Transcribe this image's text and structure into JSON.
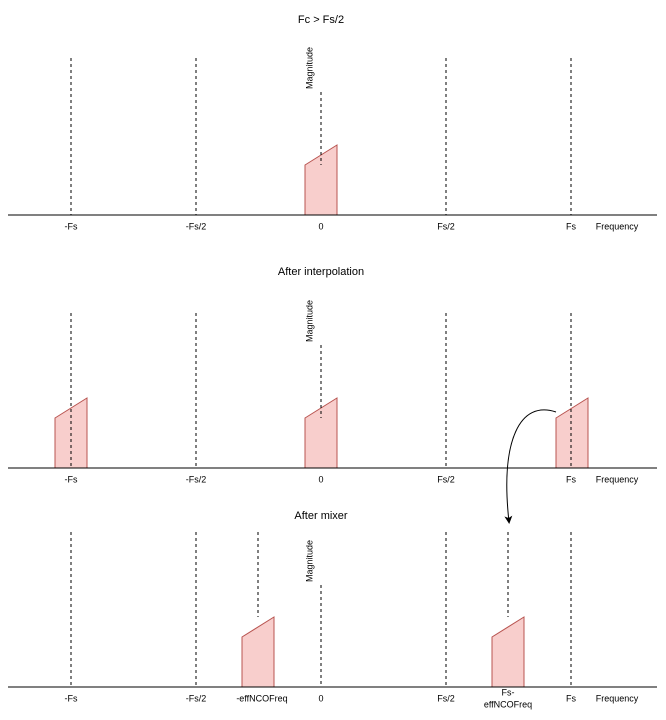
{
  "panels": [
    {
      "title": "Fc > Fs/2",
      "y_axis_label": "Magnitude",
      "x_axis_label": "Frequency",
      "ticks": [
        "-Fs",
        "-Fs/2",
        "0",
        "Fs/2",
        "Fs"
      ]
    },
    {
      "title": "After interpolation",
      "y_axis_label": "Magnitude",
      "x_axis_label": "Frequency",
      "ticks": [
        "-Fs",
        "-Fs/2",
        "0",
        "Fs/2",
        "Fs"
      ]
    },
    {
      "title": "After mixer",
      "y_axis_label": "Magnitude",
      "x_axis_label": "Frequency",
      "ticks": [
        "-Fs",
        "-Fs/2",
        "-effNCOFreq",
        "0",
        "Fs/2",
        [
          "Fs-",
          "effNCOFreq"
        ],
        "Fs"
      ]
    }
  ]
}
